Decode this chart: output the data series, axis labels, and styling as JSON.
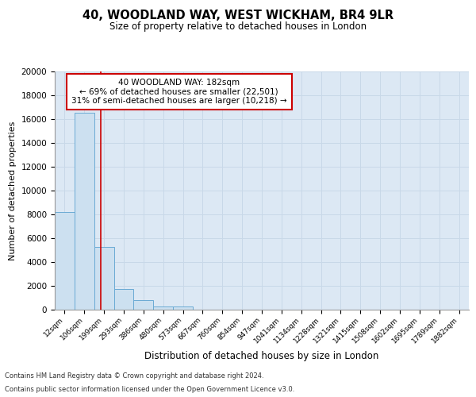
{
  "title1": "40, WOODLAND WAY, WEST WICKHAM, BR4 9LR",
  "title2": "Size of property relative to detached houses in London",
  "xlabel": "Distribution of detached houses by size in London",
  "ylabel": "Number of detached properties",
  "bar_labels": [
    "12sqm",
    "106sqm",
    "199sqm",
    "293sqm",
    "386sqm",
    "480sqm",
    "573sqm",
    "667sqm",
    "760sqm",
    "854sqm",
    "947sqm",
    "1041sqm",
    "1134sqm",
    "1228sqm",
    "1321sqm",
    "1415sqm",
    "1508sqm",
    "1602sqm",
    "1695sqm",
    "1789sqm",
    "1882sqm"
  ],
  "bar_values": [
    8200,
    16500,
    5300,
    1750,
    800,
    300,
    250,
    0,
    0,
    0,
    0,
    0,
    0,
    0,
    0,
    0,
    0,
    0,
    0,
    0,
    0
  ],
  "bar_color": "#cce0f0",
  "bar_edge_color": "#6aaad4",
  "red_line_x": 1.85,
  "ylim": [
    0,
    20000
  ],
  "yticks": [
    0,
    2000,
    4000,
    6000,
    8000,
    10000,
    12000,
    14000,
    16000,
    18000,
    20000
  ],
  "annotation_title": "40 WOODLAND WAY: 182sqm",
  "annotation_line1": "← 69% of detached houses are smaller (22,501)",
  "annotation_line2": "31% of semi-detached houses are larger (10,218) →",
  "footnote1": "Contains HM Land Registry data © Crown copyright and database right 2024.",
  "footnote2": "Contains public sector information licensed under the Open Government Licence v3.0.",
  "annotation_box_color": "#ffffff",
  "annotation_box_edge": "#cc0000",
  "grid_color": "#c8d8e8",
  "background_color": "#dce8f4"
}
